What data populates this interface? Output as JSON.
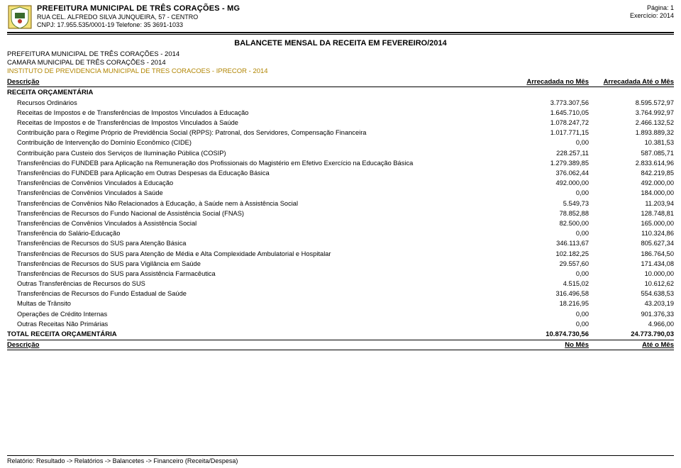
{
  "header": {
    "org_title": "PREFEITURA MUNICIPAL DE TRÊS CORAÇÕES - MG",
    "address": "RUA CEL. ALFREDO SILVA JUNQUEIRA, 57 - CENTRO",
    "cnpj_phone": "CNPJ: 17.955.535/0001-19    Telefone: 35 3691-1033",
    "page_label": "Página: 1",
    "exercicio_label": "Exercício: 2014"
  },
  "doc_title": "BALANCETE MENSAL DA RECEITA EM FEVEREIRO/2014",
  "entities": {
    "e1": "PREFEITURA MUNICIPAL DE TRÊS CORAÇÕES - 2014",
    "e2": "CAMARA MUNICIPAL DE TRÊS CORAÇÕES - 2014",
    "e3": "INSTITUTO DE PREVIDENCIA MUNICIPAL DE TRES CORACOES - IPRECOR - 2014"
  },
  "columns": {
    "desc": "Descrição",
    "mes": "Arrecadada no Mês",
    "ate": "Arrecadada Até o Mês"
  },
  "section_label": "RECEITA ORÇAMENTÁRIA",
  "rows": [
    {
      "d": "Recursos Ordinários",
      "m": "3.773.307,56",
      "a": "8.595.572,97"
    },
    {
      "d": "Receitas de Impostos e de Transferências de Impostos Vinculados à Educação",
      "m": "1.645.710,05",
      "a": "3.764.992,97"
    },
    {
      "d": "Receitas de Impostos e de Transferências de Impostos Vinculados à Saúde",
      "m": "1.078.247,72",
      "a": "2.466.132,52"
    },
    {
      "d": "Contribuição para o Regime Próprio de Previdência Social (RPPS): Patronal, dos Servidores, Compensação Financeira",
      "m": "1.017.771,15",
      "a": "1.893.889,32"
    },
    {
      "d": "Contribuição de Intervenção do Domínio Econômico (CIDE)",
      "m": "0,00",
      "a": "10.381,53"
    },
    {
      "d": "Contribuição para Custeio dos Serviços de Iluminação Pública (COSIP)",
      "m": "228.257,11",
      "a": "587.085,71"
    },
    {
      "d": "Transferências do FUNDEB para Aplicação na Remuneração dos Profissionais do Magistério em Efetivo Exercício na Educação Básica",
      "m": "1.279.389,85",
      "a": "2.833.614,96"
    },
    {
      "d": "Transferências do FUNDEB para Aplicação em Outras Despesas da Educação Básica",
      "m": "376.062,44",
      "a": "842.219,85"
    },
    {
      "d": "Transferências de Convênios Vinculados à Educação",
      "m": "492.000,00",
      "a": "492.000,00"
    },
    {
      "d": "Transferências de Convênios Vinculados à Saúde",
      "m": "0,00",
      "a": "184.000,00"
    },
    {
      "d": "Transferências de Convênios Não Relacionados à Educação, à Saúde nem à Assistência Social",
      "m": "5.549,73",
      "a": "11.203,94"
    },
    {
      "d": "Transferências de Recursos do Fundo Nacional de Assistência Social (FNAS)",
      "m": "78.852,88",
      "a": "128.748,81"
    },
    {
      "d": "Transferências de Convênios Vinculados à Assistência Social",
      "m": "82.500,00",
      "a": "165.000,00"
    },
    {
      "d": "Transferência do Salário-Educação",
      "m": "0,00",
      "a": "110.324,86"
    },
    {
      "d": "Transferências de Recursos do SUS para Atenção Básica",
      "m": "346.113,67",
      "a": "805.627,34"
    },
    {
      "d": "Transferências de Recursos do SUS para Atenção de Média e Alta Complexidade Ambulatorial e Hospitalar",
      "m": "102.182,25",
      "a": "186.764,50"
    },
    {
      "d": "Transferências de Recursos do SUS para Vigilância em Saúde",
      "m": "29.557,60",
      "a": "171.434,08"
    },
    {
      "d": "Transferências de Recursos do SUS para Assistência Farmacêutica",
      "m": "0,00",
      "a": "10.000,00"
    },
    {
      "d": "Outras Transferências de Recursos do SUS",
      "m": "4.515,02",
      "a": "10.612,62"
    },
    {
      "d": "Transferências de Recursos do Fundo Estadual de Saúde",
      "m": "316.496,58",
      "a": "554.638,53"
    },
    {
      "d": "Multas de Trânsito",
      "m": "18.216,95",
      "a": "43.203,19"
    },
    {
      "d": "Operações de Crédito Internas",
      "m": "0,00",
      "a": "901.376,33"
    },
    {
      "d": "Outras Receitas Não Primárias",
      "m": "0,00",
      "a": "4.966,00"
    }
  ],
  "total": {
    "label": "TOTAL RECEITA ORÇAMENTÁRIA",
    "m": "10.874.730,56",
    "a": "24.773.790,03"
  },
  "section2": {
    "desc": "Descrição",
    "mes": "No Mês",
    "ate": "Até o Mês"
  },
  "footer_path": "Relatório: Resultado -> Relatórios -> Balancetes -> Financeiro (Receita/Despesa)"
}
